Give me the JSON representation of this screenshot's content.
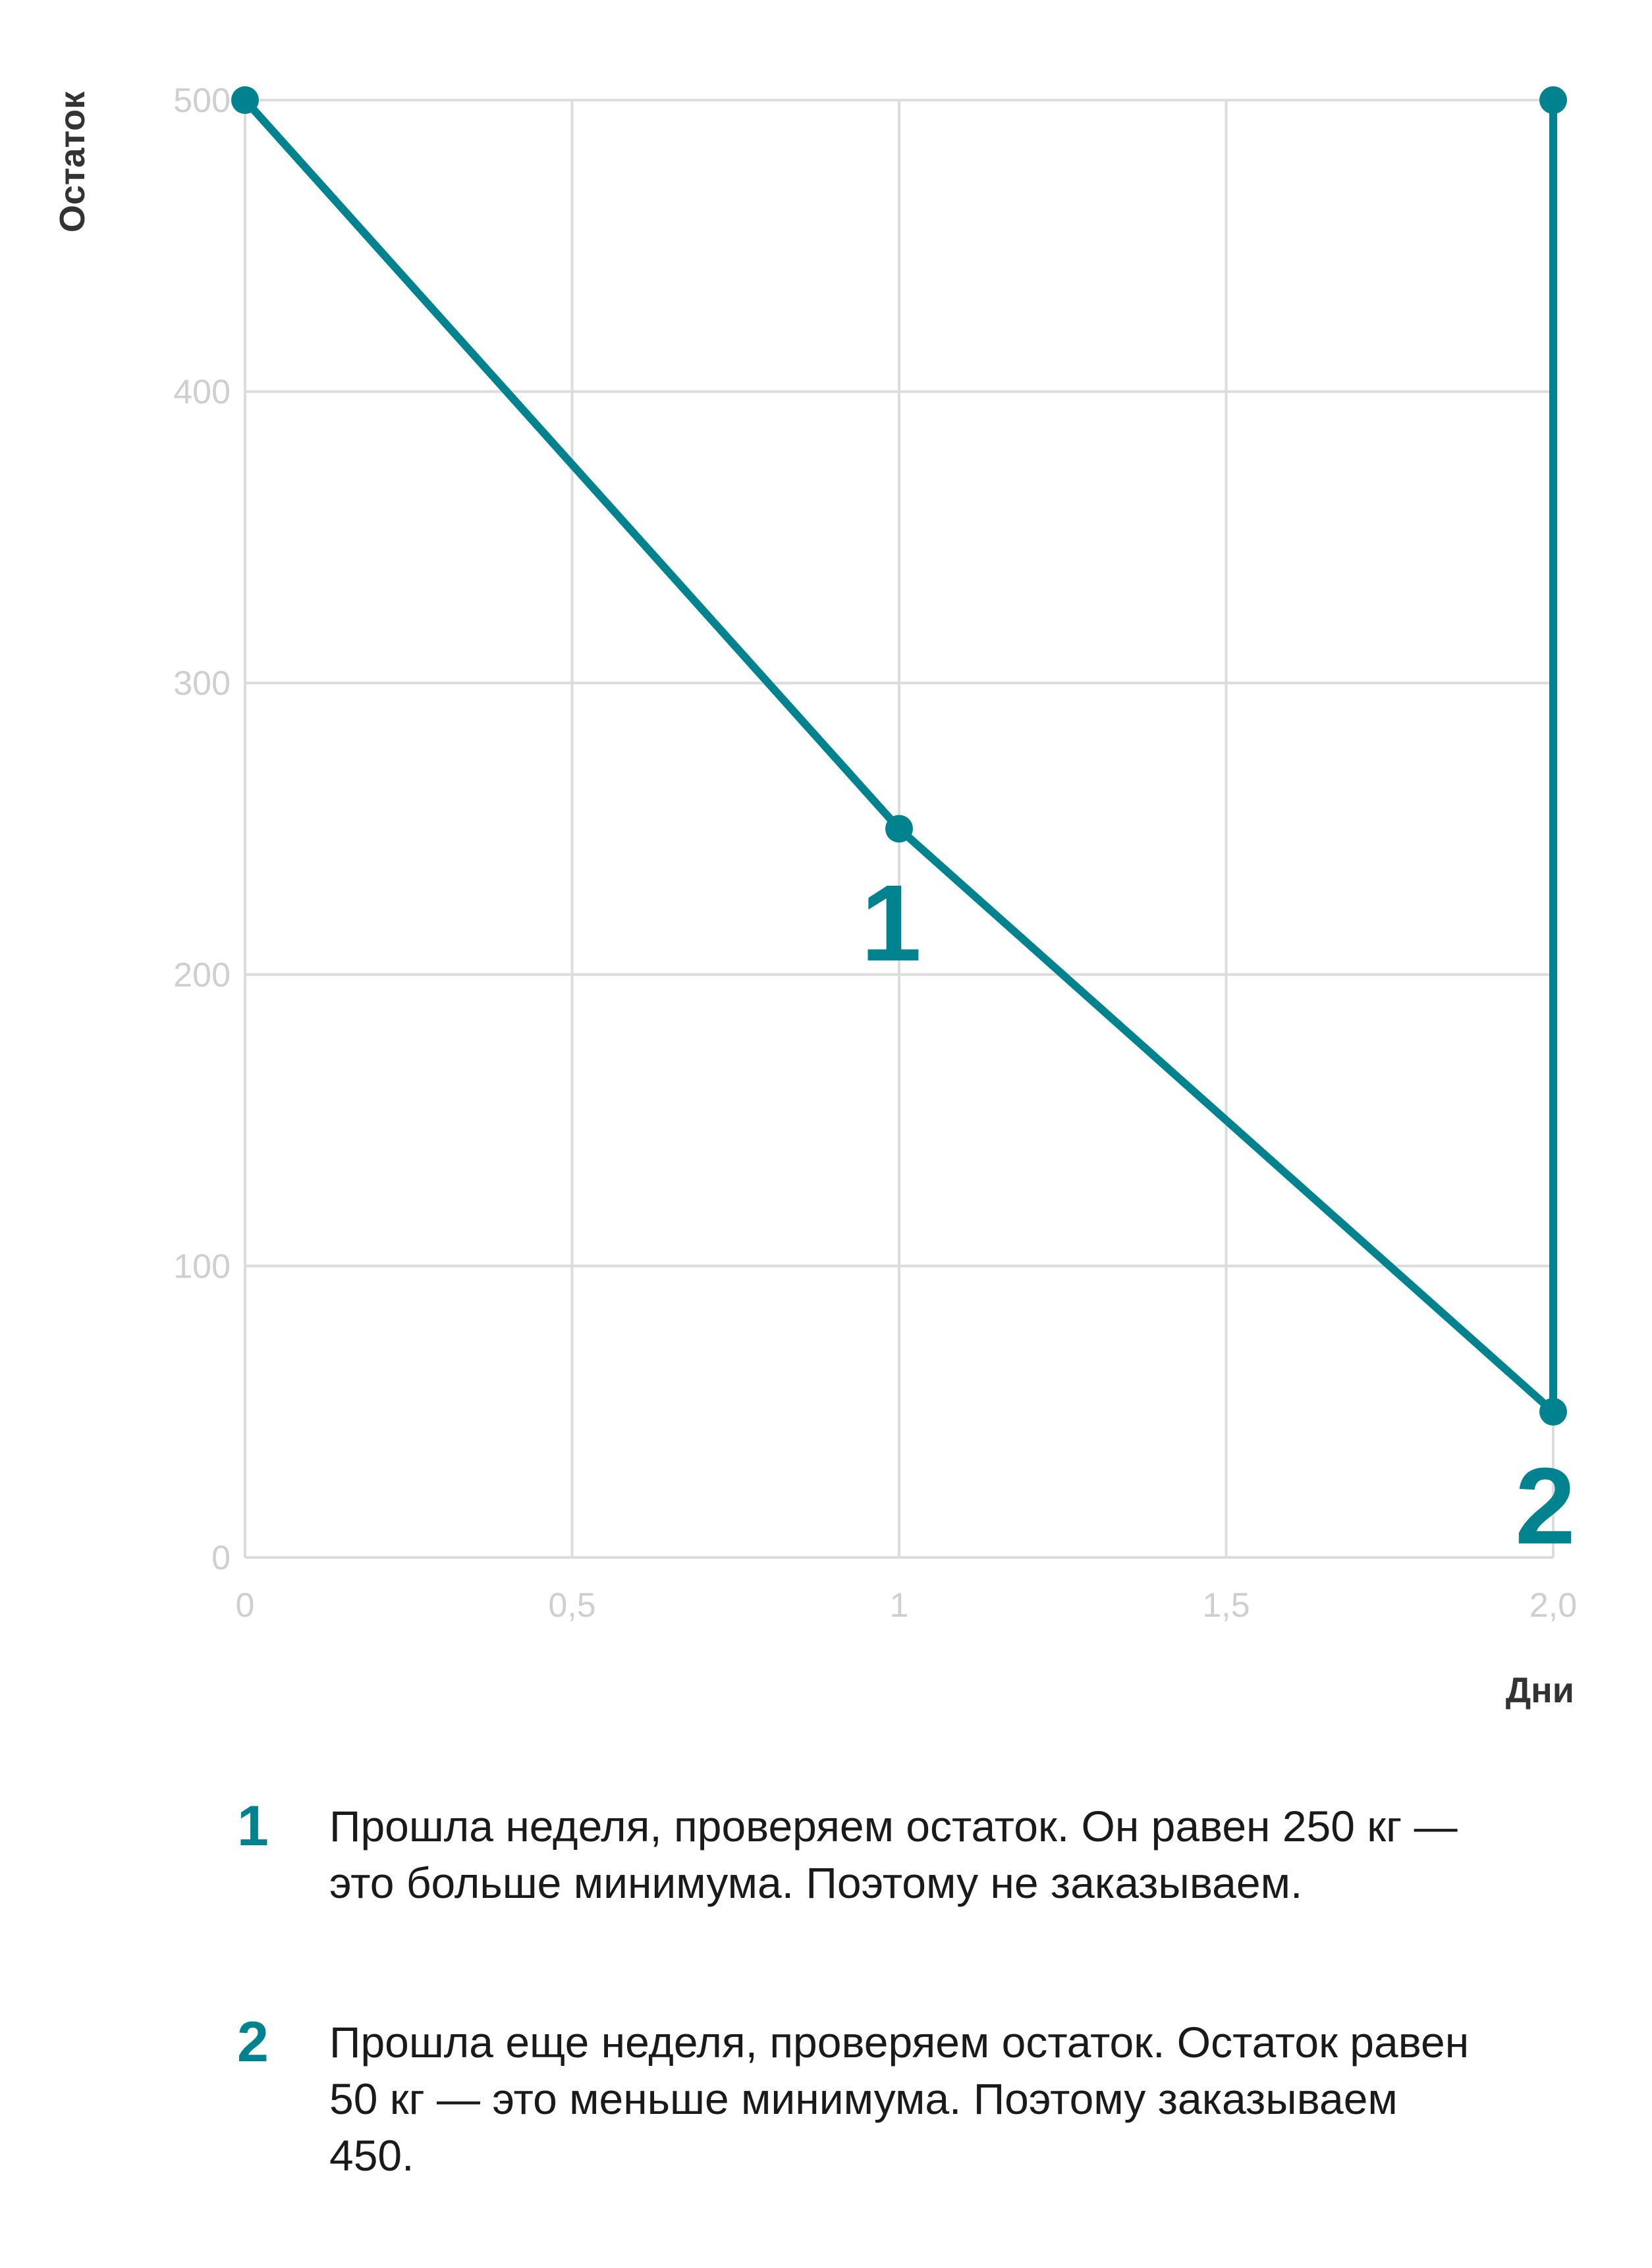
{
  "chart_data": {
    "type": "line",
    "title": "",
    "xlabel": "Дни",
    "ylabel": "Остаток",
    "xlim": [
      0,
      2.0
    ],
    "ylim": [
      0,
      500
    ],
    "x_ticks": [
      0,
      0.5,
      1,
      1.5,
      2.0
    ],
    "x_tick_labels": [
      "0",
      "0,5",
      "1",
      "1,5",
      "2,0"
    ],
    "y_ticks": [
      0,
      100,
      200,
      300,
      400,
      500
    ],
    "y_tick_labels": [
      "0",
      "100",
      "200",
      "300",
      "400",
      "500"
    ],
    "grid": true,
    "series": [
      {
        "color": "#00838f",
        "points": [
          {
            "x": 0,
            "y": 500
          },
          {
            "x": 1,
            "y": 250
          },
          {
            "x": 2,
            "y": 50
          },
          {
            "x": 2,
            "y": 500
          }
        ],
        "markers": [
          {
            "x": 0,
            "y": 500
          },
          {
            "x": 1,
            "y": 250
          },
          {
            "x": 2,
            "y": 50
          },
          {
            "x": 2,
            "y": 500
          }
        ]
      }
    ],
    "annotations": [
      {
        "text": "1",
        "x": 1,
        "y": 250
      },
      {
        "text": "2",
        "x": 2,
        "y": 50
      }
    ]
  },
  "notes": [
    {
      "number": "1",
      "text": "Прошла неделя, проверяем остаток. Он равен 250 кг — это больше минимума. Поэтому не заказываем."
    },
    {
      "number": "2",
      "text": "Прошла еще неделя, проверяем остаток. Остаток равен 50 кг — это меньше минимума. Поэтому заказываем 450."
    }
  ]
}
